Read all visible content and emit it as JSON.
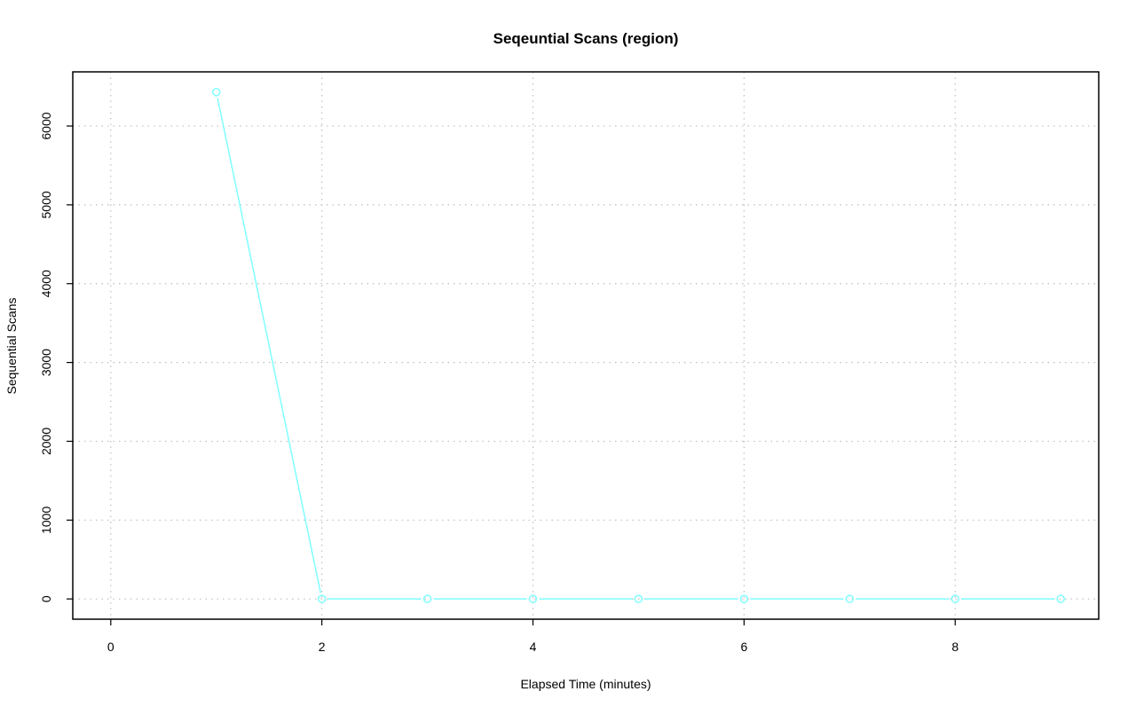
{
  "chart_data": {
    "type": "line",
    "title": "Seqeuntial Scans (region)",
    "xlabel": "Elapsed Time (minutes)",
    "ylabel": "Sequential Scans",
    "x": [
      1,
      2,
      3,
      4,
      5,
      6,
      7,
      8,
      9
    ],
    "series": [
      {
        "values": [
          6430,
          0,
          0,
          0,
          0,
          0,
          0,
          0,
          0
        ],
        "color": "#80FFFF",
        "markers": "open-circle"
      }
    ],
    "xlim": [
      -0.36,
      9.36
    ],
    "ylim": [
      -257,
      6687
    ],
    "xticks": [
      "0",
      "2",
      "4",
      "6",
      "8"
    ],
    "yticks": [
      "0",
      "1000",
      "2000",
      "3000",
      "4000",
      "5000",
      "6000"
    ],
    "grid": true,
    "grid_style": "dotted",
    "grid_color": "#BEBEBE",
    "legend": "none"
  }
}
